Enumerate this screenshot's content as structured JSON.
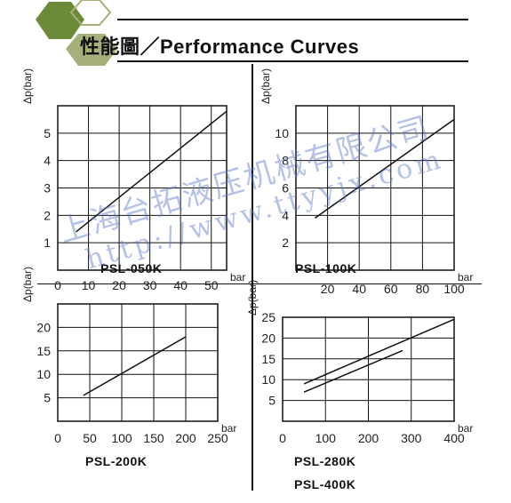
{
  "header": {
    "title": "性能圖／Performance Curves",
    "hex_colors": {
      "dark": "#6b8a3a",
      "light": "#a6b07a"
    }
  },
  "watermark": {
    "line1": "上海台拓液压机械有限公司",
    "line2": "http://www.ttyyjx.com",
    "color": "#5a78c8"
  },
  "chart_data": [
    {
      "type": "line",
      "name_label": "PSL-050K",
      "ylabel": "Δp(bar)",
      "xlabel": "bar",
      "xlim": [
        0,
        55
      ],
      "ylim": [
        0,
        6
      ],
      "xticks": [
        0,
        10,
        20,
        30,
        40,
        50
      ],
      "yticks": [
        1,
        2,
        3,
        4,
        5
      ],
      "grid": true,
      "series": [
        {
          "x": [
            6,
            55
          ],
          "y": [
            1.4,
            5.8
          ]
        }
      ]
    },
    {
      "type": "line",
      "name_label": "PSL-100K",
      "ylabel": "Δp(bar)",
      "xlabel": "bar",
      "xlim": [
        0,
        100
      ],
      "ylim": [
        0,
        12
      ],
      "xticks": [
        20,
        40,
        60,
        80,
        100
      ],
      "yticks": [
        2,
        4,
        6,
        8,
        10
      ],
      "grid": true,
      "series": [
        {
          "x": [
            12,
            100
          ],
          "y": [
            3.8,
            11
          ]
        }
      ]
    },
    {
      "type": "line",
      "name_label": "PSL-200K",
      "ylabel": "Δp(bar)",
      "xlabel": "bar",
      "xlim": [
        0,
        250
      ],
      "ylim": [
        0,
        25
      ],
      "xticks": [
        0,
        50,
        100,
        150,
        200,
        250
      ],
      "yticks": [
        5,
        10,
        15,
        20
      ],
      "grid": true,
      "series": [
        {
          "x": [
            40,
            200
          ],
          "y": [
            5.5,
            18
          ]
        }
      ]
    },
    {
      "type": "line",
      "name_label": "PSL-280K",
      "name_label2": "PSL-400K",
      "ylabel": "Δp(bar)",
      "xlabel": "bar",
      "xlim": [
        0,
        400
      ],
      "ylim": [
        0,
        25
      ],
      "xticks": [
        0,
        100,
        200,
        300,
        400
      ],
      "yticks": [
        5,
        10,
        15,
        20,
        25
      ],
      "grid": true,
      "series": [
        {
          "x": [
            50,
            400
          ],
          "y": [
            9,
            24.5
          ]
        },
        {
          "x": [
            50,
            280
          ],
          "y": [
            7,
            17
          ]
        }
      ]
    }
  ]
}
